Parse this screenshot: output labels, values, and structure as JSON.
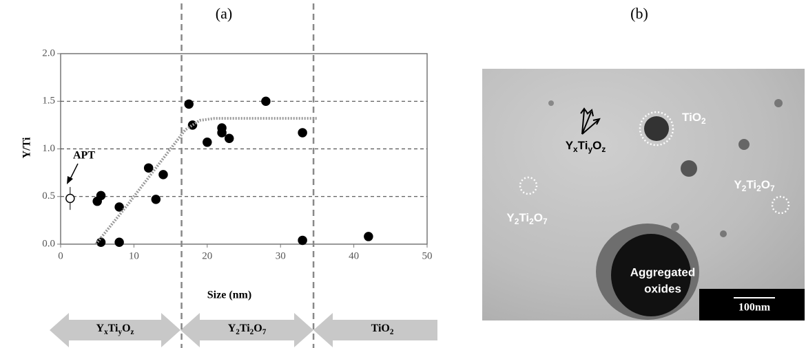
{
  "panels": [
    "(a)",
    "(b)"
  ],
  "chart_data": {
    "type": "scatter",
    "xlabel": "Size (nm)",
    "ylabel": "Y/Ti",
    "xlim": [
      0,
      50
    ],
    "ylim": [
      0,
      2
    ],
    "xticks": [
      0,
      10,
      20,
      30,
      40,
      50
    ],
    "yticks": [
      {
        "value": 0,
        "label": "0.0"
      },
      {
        "value": 0.5,
        "label": "0.5"
      },
      {
        "value": 1,
        "label": "1.0"
      },
      {
        "value": 1.5,
        "label": "1.5"
      },
      {
        "value": 2,
        "label": "2.0"
      }
    ],
    "grid": true,
    "series": [
      {
        "color": "#000000",
        "marker": "filled",
        "x": [
          5,
          5.5,
          5.5,
          8,
          8,
          12,
          13,
          14,
          17.5,
          18,
          20,
          22,
          22,
          23,
          28,
          33,
          33,
          42
        ],
        "values": [
          0.45,
          0.51,
          0.02,
          0.02,
          0.39,
          0.8,
          0.47,
          0.73,
          1.47,
          1.25,
          1.07,
          1.22,
          1.17,
          1.11,
          1.5,
          1.17,
          0.04,
          0.08
        ]
      },
      {
        "color": "#000000",
        "marker": "open",
        "x": [
          1.3
        ],
        "values": [
          0.48
        ],
        "errors": [
          0.12
        ]
      },
      {
        "type": "line",
        "color": "#9a9a9a",
        "x": [
          4.8,
          9,
          13,
          17,
          19,
          21,
          35
        ],
        "values": [
          0,
          0.4,
          0.8,
          1.2,
          1.3,
          1.32,
          1.32
        ]
      }
    ],
    "annotations": [
      "APT"
    ],
    "vlines": [
      16.5,
      34.5
    ],
    "regions": [
      [
        "Y",
        "x",
        "Ti",
        "y",
        "O",
        "z"
      ],
      [
        "Y",
        "2",
        "Ti",
        "2",
        "O",
        "7"
      ],
      [
        "TiO",
        "2"
      ]
    ]
  },
  "micrograph": {
    "labels": [
      [
        "TiO",
        "2"
      ],
      [
        "Y",
        "x",
        "Ti",
        "y",
        "O",
        "z"
      ],
      [
        "Y",
        "2",
        "Ti",
        "2",
        "O",
        "7"
      ],
      [
        "Y",
        "2",
        "Ti",
        "2",
        "O",
        "7"
      ]
    ],
    "aggregate": [
      "Aggregated",
      "oxides"
    ],
    "scale_bar": "100nm"
  }
}
